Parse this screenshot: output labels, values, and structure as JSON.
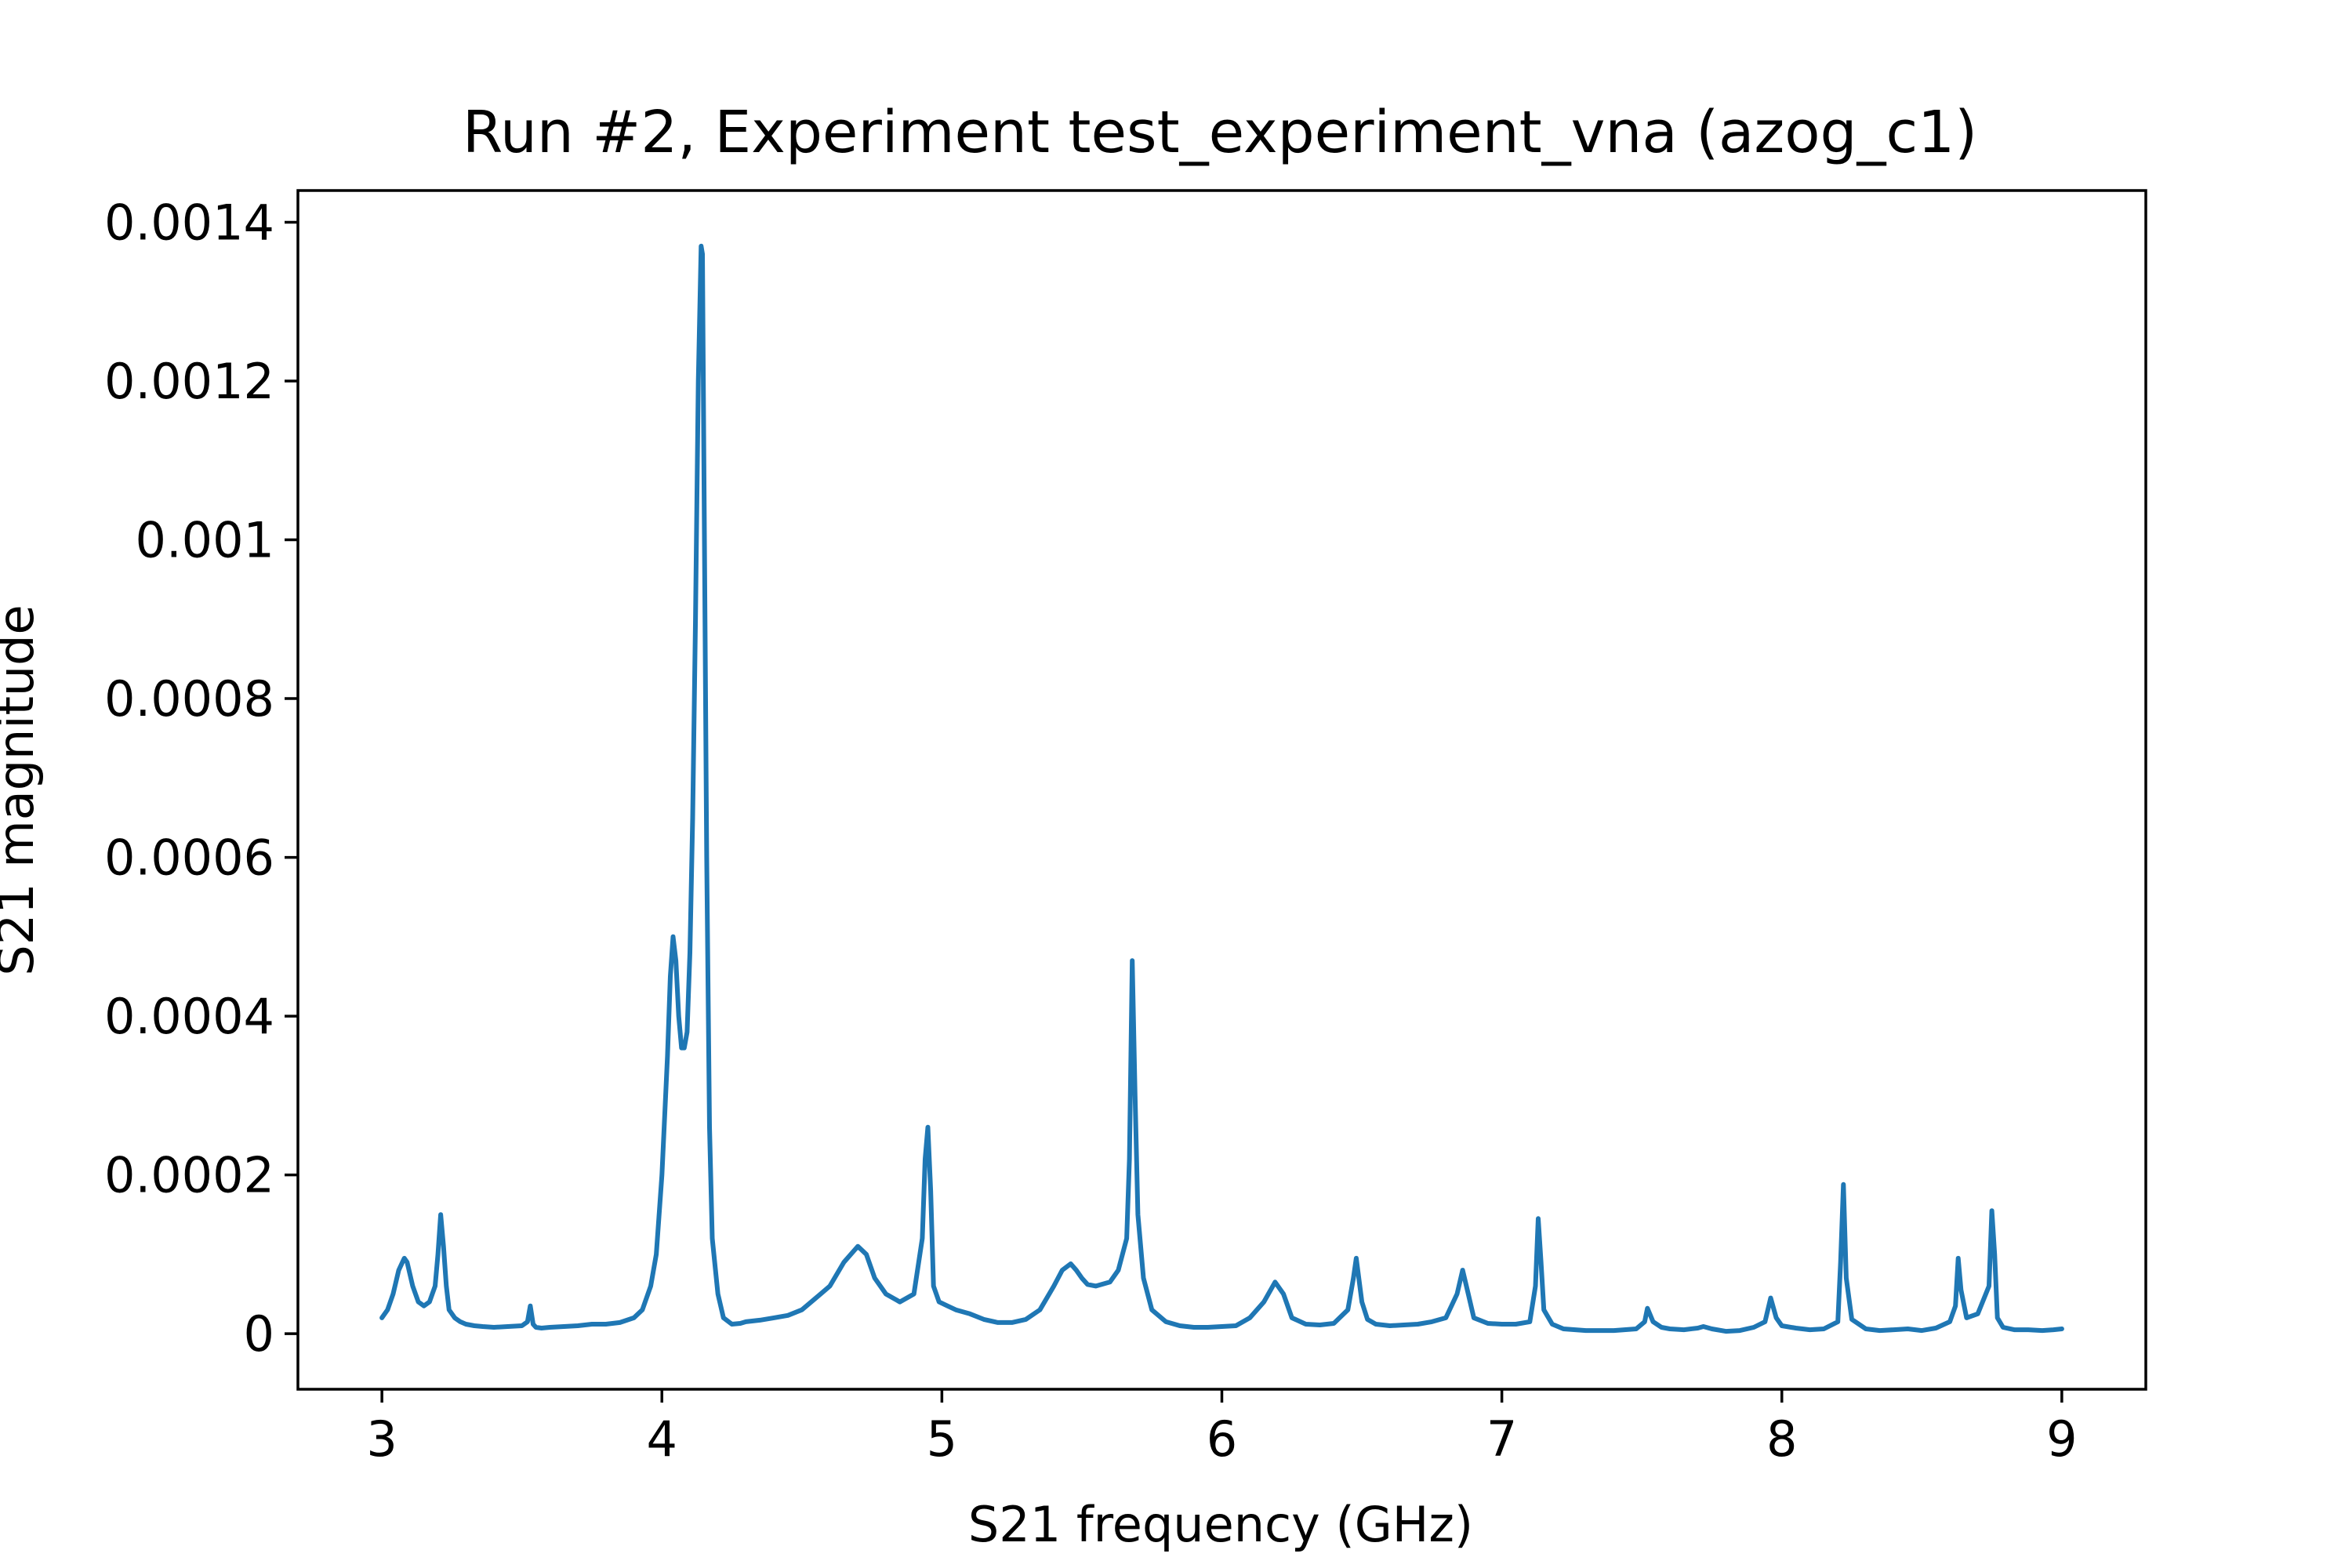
{
  "chart_data": {
    "type": "line",
    "title": "Run #2, Experiment test_experiment_vna (azog_c1)",
    "xlabel": "S21 frequency (GHz)",
    "ylabel": "S21 magnitude",
    "xlim": [
      2.7,
      9.3
    ],
    "ylim": [
      -7e-05,
      0.00144
    ],
    "x_ticks": [
      3,
      4,
      5,
      6,
      7,
      8,
      9
    ],
    "x_tick_labels": [
      "3",
      "4",
      "5",
      "6",
      "7",
      "8",
      "9"
    ],
    "y_ticks": [
      0,
      0.0002,
      0.0004,
      0.0006,
      0.0008,
      0.001,
      0.0012,
      0.0014
    ],
    "y_tick_labels": [
      "0",
      "0.0002",
      "0.0004",
      "0.0006",
      "0.0008",
      "0.001",
      "0.0012",
      "0.0014"
    ],
    "grid": false,
    "legend": "none",
    "line_color": "#1f77b4",
    "series": [
      {
        "x": [
          3.0,
          3.02,
          3.04,
          3.06,
          3.08,
          3.09,
          3.11,
          3.13,
          3.15,
          3.17,
          3.19,
          3.2,
          3.21,
          3.22,
          3.23,
          3.24,
          3.26,
          3.28,
          3.3,
          3.33,
          3.36,
          3.4,
          3.45,
          3.5,
          3.52,
          3.53,
          3.54,
          3.55,
          3.57,
          3.6,
          3.65,
          3.7,
          3.75,
          3.8,
          3.85,
          3.9,
          3.93,
          3.96,
          3.98,
          4.0,
          4.02,
          4.03,
          4.04,
          4.05,
          4.06,
          4.07,
          4.08,
          4.09,
          4.1,
          4.11,
          4.12,
          4.13,
          4.14,
          4.145,
          4.15,
          4.16,
          4.17,
          4.18,
          4.2,
          4.22,
          4.25,
          4.28,
          4.3,
          4.35,
          4.4,
          4.45,
          4.5,
          4.55,
          4.6,
          4.65,
          4.7,
          4.73,
          4.76,
          4.8,
          4.85,
          4.9,
          4.93,
          4.94,
          4.95,
          4.96,
          4.97,
          4.99,
          5.02,
          5.05,
          5.1,
          5.15,
          5.2,
          5.25,
          5.3,
          5.35,
          5.4,
          5.43,
          5.46,
          5.48,
          5.5,
          5.52,
          5.55,
          5.6,
          5.63,
          5.66,
          5.67,
          5.68,
          5.69,
          5.7,
          5.72,
          5.75,
          5.8,
          5.85,
          5.9,
          5.95,
          6.0,
          6.05,
          6.1,
          6.15,
          6.19,
          6.22,
          6.25,
          6.3,
          6.35,
          6.4,
          6.45,
          6.47,
          6.48,
          6.5,
          6.52,
          6.55,
          6.6,
          6.65,
          6.7,
          6.75,
          6.8,
          6.84,
          6.86,
          6.88,
          6.9,
          6.95,
          7.0,
          7.05,
          7.1,
          7.12,
          7.13,
          7.14,
          7.15,
          7.18,
          7.22,
          7.3,
          7.4,
          7.48,
          7.51,
          7.52,
          7.54,
          7.57,
          7.6,
          7.65,
          7.7,
          7.72,
          7.75,
          7.8,
          7.85,
          7.9,
          7.94,
          7.96,
          7.98,
          8.0,
          8.05,
          8.1,
          8.15,
          8.2,
          8.21,
          8.22,
          8.23,
          8.25,
          8.3,
          8.35,
          8.4,
          8.45,
          8.5,
          8.55,
          8.6,
          8.62,
          8.63,
          8.64,
          8.66,
          8.7,
          8.74,
          8.75,
          8.76,
          8.77,
          8.79,
          8.83,
          8.88,
          8.93,
          8.97,
          9.0
        ],
        "y": [
          2e-05,
          3e-05,
          5e-05,
          8e-05,
          9.5e-05,
          9e-05,
          6e-05,
          4e-05,
          3.5e-05,
          4e-05,
          6e-05,
          0.0001,
          0.00015,
          0.00011,
          6e-05,
          3e-05,
          2e-05,
          1.5e-05,
          1.2e-05,
          1e-05,
          9e-06,
          8e-06,
          9e-06,
          1e-05,
          1.5e-05,
          3.5e-05,
          1.2e-05,
          8e-06,
          7e-06,
          8e-06,
          9e-06,
          1e-05,
          1.2e-05,
          1.2e-05,
          1.4e-05,
          2e-05,
          3e-05,
          6e-05,
          0.0001,
          0.0002,
          0.00035,
          0.00045,
          0.0005,
          0.00047,
          0.0004,
          0.00036,
          0.00036,
          0.00038,
          0.00048,
          0.00065,
          0.0009,
          0.0012,
          0.00137,
          0.00136,
          0.0011,
          0.0006,
          0.00026,
          0.00012,
          5e-05,
          2e-05,
          1.2e-05,
          1.3e-05,
          1.5e-05,
          1.7e-05,
          2e-05,
          2.3e-05,
          3e-05,
          4.5e-05,
          6e-05,
          9e-05,
          0.00011,
          0.0001,
          7e-05,
          5e-05,
          4e-05,
          5e-05,
          0.00012,
          0.00022,
          0.00026,
          0.00018,
          6e-05,
          4e-05,
          3.5e-05,
          3e-05,
          2.5e-05,
          1.8e-05,
          1.4e-05,
          1.4e-05,
          1.8e-05,
          3e-05,
          6e-05,
          8e-05,
          8.8e-05,
          8e-05,
          7e-05,
          6.2e-05,
          6e-05,
          6.5e-05,
          8e-05,
          0.00012,
          0.00022,
          0.00047,
          0.0003,
          0.00015,
          7e-05,
          3e-05,
          1.5e-05,
          1e-05,
          8e-06,
          8e-06,
          9e-06,
          1e-05,
          2e-05,
          4e-05,
          6.5e-05,
          5e-05,
          2e-05,
          1.2e-05,
          1.1e-05,
          1.3e-05,
          3e-05,
          7e-05,
          9.5e-05,
          4e-05,
          1.8e-05,
          1.2e-05,
          1e-05,
          1.1e-05,
          1.2e-05,
          1.5e-05,
          2e-05,
          5e-05,
          8e-05,
          5e-05,
          2e-05,
          1.3e-05,
          1.2e-05,
          1.2e-05,
          1.5e-05,
          6e-05,
          0.000145,
          9e-05,
          3e-05,
          1.2e-05,
          6e-06,
          4e-06,
          4e-06,
          6e-06,
          1.5e-05,
          3.2e-05,
          1.5e-05,
          8e-06,
          6e-06,
          5e-06,
          7e-06,
          9e-06,
          6e-06,
          3e-06,
          4e-06,
          8e-06,
          1.5e-05,
          4.5e-05,
          2e-05,
          1e-05,
          7e-06,
          5e-06,
          6e-06,
          1.5e-05,
          9e-05,
          0.000188,
          7e-05,
          1.8e-05,
          6e-06,
          4e-06,
          5e-06,
          6e-06,
          4e-06,
          7e-06,
          1.5e-05,
          3.5e-05,
          9.5e-05,
          5.5e-05,
          2e-05,
          2.5e-05,
          6e-05,
          0.000155,
          0.0001,
          2e-05,
          8e-06,
          5e-06,
          5e-06,
          4e-06,
          5e-06,
          6e-06
        ]
      }
    ]
  }
}
